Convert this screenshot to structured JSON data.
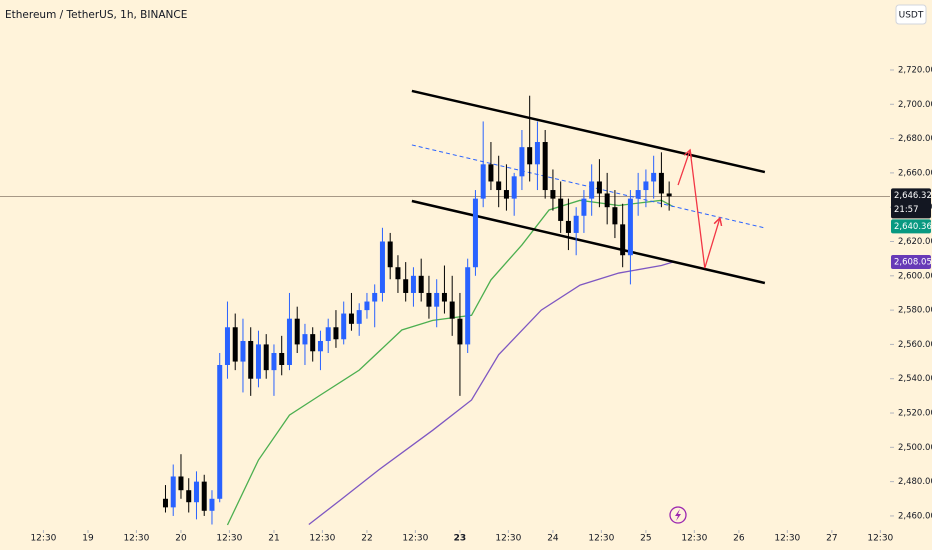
{
  "chart_data": {
    "type": "candlestick",
    "title": "Ethereum / TetherUS, 1h, BINANCE",
    "currency": "USDT",
    "countdown": "21:57",
    "up_color": "#2962ff",
    "down_color": "#000000",
    "xlim": [
      -22.71,
      207
    ],
    "ylim": [
      2451.8,
      2760.8
    ],
    "xticks": [
      {
        "value": -11.5,
        "label": "12:30"
      },
      {
        "value": 0,
        "label": "19"
      },
      {
        "value": 12.5,
        "label": "12:30"
      },
      {
        "value": 24,
        "label": "20"
      },
      {
        "value": 36.5,
        "label": "12:30"
      },
      {
        "value": 48,
        "label": "21"
      },
      {
        "value": 60.5,
        "label": "12:30"
      },
      {
        "value": 72,
        "label": "22"
      },
      {
        "value": 84.5,
        "label": "12:30"
      },
      {
        "value": 96,
        "label": "23"
      },
      {
        "value": 108.5,
        "label": "12:30"
      },
      {
        "value": 120,
        "label": "24"
      },
      {
        "value": 132.5,
        "label": "12:30"
      },
      {
        "value": 144,
        "label": "25"
      },
      {
        "value": 156.5,
        "label": "12:30"
      },
      {
        "value": 168,
        "label": "26"
      },
      {
        "value": 180.5,
        "label": "12:30"
      },
      {
        "value": 192,
        "label": "27"
      },
      {
        "value": 204.5,
        "label": "12:30"
      }
    ],
    "bold_xtick": 9,
    "yticks": [
      {
        "value": 2460,
        "label": "2,460.00"
      },
      {
        "value": 2480,
        "label": "2,480.00"
      },
      {
        "value": 2500,
        "label": "2,500.00"
      },
      {
        "value": 2520,
        "label": "2,520.00"
      },
      {
        "value": 2540,
        "label": "2,540.00"
      },
      {
        "value": 2560,
        "label": "2,560.00"
      },
      {
        "value": 2580,
        "label": "2,580.00"
      },
      {
        "value": 2600,
        "label": "2,600.00"
      },
      {
        "value": 2620,
        "label": "2,620.00"
      },
      {
        "value": 2640,
        "label": "2,640.00"
      },
      {
        "value": 2660,
        "label": "2,660.00"
      },
      {
        "value": 2680,
        "label": "2,680.00"
      },
      {
        "value": 2700,
        "label": "2,700.00"
      },
      {
        "value": 2720,
        "label": "2,720.00"
      }
    ],
    "ohlc": [
      [
        20,
        2470,
        2478,
        2462,
        2465
      ],
      [
        22,
        2465,
        2490,
        2460,
        2483
      ],
      [
        24,
        2483,
        2496,
        2470,
        2475
      ],
      [
        26,
        2475,
        2482,
        2462,
        2468
      ],
      [
        28,
        2468,
        2486,
        2458,
        2480
      ],
      [
        30,
        2480,
        2484,
        2460,
        2463
      ],
      [
        32,
        2463,
        2475,
        2455,
        2470
      ],
      [
        34,
        2470,
        2555,
        2468,
        2548
      ],
      [
        36,
        2548,
        2585,
        2540,
        2570
      ],
      [
        38,
        2570,
        2578,
        2545,
        2550
      ],
      [
        40,
        2550,
        2575,
        2532,
        2562
      ],
      [
        42,
        2562,
        2570,
        2530,
        2540
      ],
      [
        44,
        2540,
        2568,
        2535,
        2560
      ],
      [
        46,
        2560,
        2566,
        2540,
        2545
      ],
      [
        48,
        2545,
        2560,
        2530,
        2555
      ],
      [
        50,
        2555,
        2565,
        2542,
        2548
      ],
      [
        52,
        2548,
        2590,
        2545,
        2575
      ],
      [
        54,
        2575,
        2582,
        2555,
        2560
      ],
      [
        56,
        2560,
        2572,
        2548,
        2566
      ],
      [
        58,
        2566,
        2570,
        2550,
        2556
      ],
      [
        60,
        2556,
        2568,
        2545,
        2562
      ],
      [
        62,
        2562,
        2575,
        2555,
        2570
      ],
      [
        64,
        2570,
        2580,
        2558,
        2563
      ],
      [
        66,
        2563,
        2585,
        2560,
        2578
      ],
      [
        68,
        2578,
        2590,
        2568,
        2572
      ],
      [
        70,
        2572,
        2584,
        2565,
        2580
      ],
      [
        72,
        2580,
        2590,
        2575,
        2585
      ],
      [
        74,
        2585,
        2595,
        2570,
        2590
      ],
      [
        76,
        2590,
        2628,
        2585,
        2620
      ],
      [
        78,
        2620,
        2625,
        2598,
        2605
      ],
      [
        80,
        2605,
        2612,
        2590,
        2598
      ],
      [
        82,
        2598,
        2608,
        2585,
        2590
      ],
      [
        84,
        2590,
        2605,
        2582,
        2600
      ],
      [
        86,
        2600,
        2610,
        2585,
        2590
      ],
      [
        88,
        2590,
        2600,
        2575,
        2582
      ],
      [
        90,
        2582,
        2598,
        2570,
        2590
      ],
      [
        92,
        2590,
        2606,
        2578,
        2585
      ],
      [
        94,
        2585,
        2600,
        2565,
        2575
      ],
      [
        96,
        2575,
        2590,
        2530,
        2560
      ],
      [
        98,
        2560,
        2610,
        2555,
        2605
      ],
      [
        100,
        2605,
        2650,
        2600,
        2645
      ],
      [
        102,
        2645,
        2690,
        2640,
        2665
      ],
      [
        104,
        2665,
        2678,
        2650,
        2655
      ],
      [
        106,
        2655,
        2670,
        2640,
        2650
      ],
      [
        108,
        2650,
        2665,
        2638,
        2645
      ],
      [
        110,
        2645,
        2660,
        2635,
        2658
      ],
      [
        112,
        2658,
        2685,
        2650,
        2675
      ],
      [
        114,
        2675,
        2705,
        2655,
        2665
      ],
      [
        116,
        2665,
        2690,
        2650,
        2678
      ],
      [
        118,
        2678,
        2685,
        2645,
        2650
      ],
      [
        120,
        2650,
        2662,
        2638,
        2645
      ],
      [
        122,
        2645,
        2655,
        2625,
        2632
      ],
      [
        124,
        2632,
        2645,
        2615,
        2625
      ],
      [
        126,
        2625,
        2640,
        2612,
        2635
      ],
      [
        128,
        2635,
        2650,
        2625,
        2645
      ],
      [
        130,
        2645,
        2665,
        2635,
        2655
      ],
      [
        132,
        2655,
        2668,
        2640,
        2648
      ],
      [
        134,
        2648,
        2660,
        2630,
        2640
      ],
      [
        136,
        2640,
        2650,
        2622,
        2630
      ],
      [
        138,
        2630,
        2642,
        2605,
        2612
      ],
      [
        140,
        2612,
        2650,
        2595,
        2645
      ],
      [
        142,
        2645,
        2660,
        2635,
        2650
      ],
      [
        144,
        2650,
        2662,
        2640,
        2655
      ],
      [
        146,
        2655,
        2670,
        2645,
        2660
      ],
      [
        148,
        2660,
        2672,
        2640,
        2648
      ],
      [
        150,
        2648,
        2655,
        2638,
        2646.32
      ]
    ],
    "overlays": [
      {
        "color": "#4caf50",
        "x": [
          36,
          44,
          52,
          60,
          70,
          81,
          89,
          99,
          104,
          112,
          119,
          127,
          137,
          148,
          151
        ],
        "values": [
          2454.7,
          2492.6,
          2518.8,
          2530.5,
          2545,
          2568.4,
          2574,
          2577,
          2597.6,
          2618,
          2638.4,
          2644,
          2641,
          2644,
          2640.36
        ]
      },
      {
        "color": "#7e57c2",
        "x": [
          57,
          65,
          75,
          89,
          99,
          106,
          117,
          127,
          137,
          148,
          151
        ],
        "values": [
          2455,
          2469,
          2486.8,
          2510,
          2527.6,
          2554,
          2580,
          2594.6,
          2601.6,
          2606,
          2608.05
        ]
      },
      {
        "color": "#000000",
        "width": 2.5,
        "x": [
          83.6,
          174.7
        ],
        "values": [
          2707.8,
          2660.5
        ]
      },
      {
        "color": "#000000",
        "width": 2.5,
        "x": [
          83.6,
          174.7
        ],
        "values": [
          2643.6,
          2595.8
        ]
      },
      {
        "color": "#2962ff",
        "width": 1,
        "dash": true,
        "x": [
          83.6,
          174.7
        ],
        "values": [
          2676.3,
          2627.9
        ]
      },
      {
        "color": "#f23645",
        "width": 1.3,
        "arrows": true,
        "x": [
          152.3,
          155.4,
          159.2,
          163.1
        ],
        "values": [
          2652.9,
          2673.4,
          2604.5,
          2633.7
        ]
      }
    ],
    "price_line": {
      "value": 2646.32,
      "label": "2,646.32",
      "color": "#131722"
    },
    "price_tags": [
      {
        "value": 2640.36,
        "label": "2,640.36",
        "color": "#089981"
      },
      {
        "value": 2608.05,
        "label": "2,608.05",
        "color": "#673ab7"
      }
    ]
  }
}
